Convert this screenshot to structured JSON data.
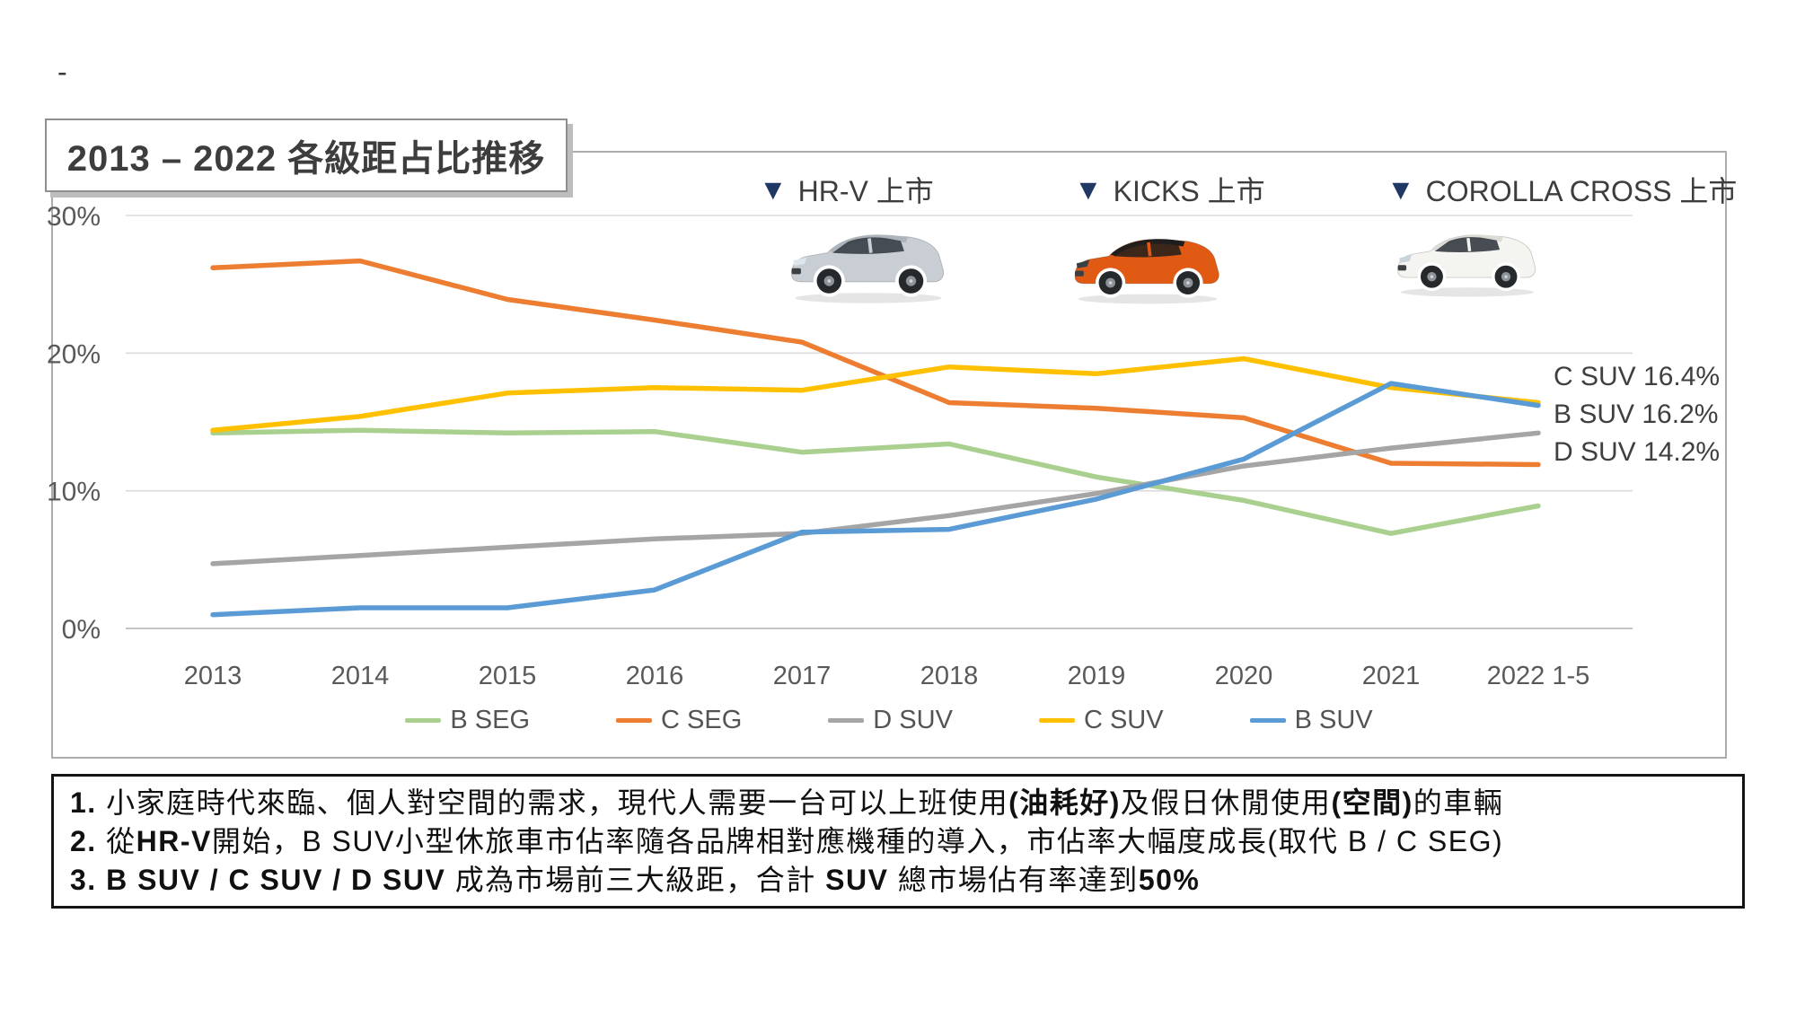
{
  "decorations": {
    "dash": "-"
  },
  "header": {
    "title": "2013 – 2022 各級距占比推移"
  },
  "annotations": [
    {
      "marker": "▼",
      "label": "HR-V 上市",
      "car": {
        "name": "honda-hrv",
        "body": "#C9CED4",
        "roof": "#AEB4BB",
        "glass": "#333A41",
        "light": "#DDE5EC"
      }
    },
    {
      "marker": "▼",
      "label": "KICKS 上市",
      "car": {
        "name": "nissan-kicks",
        "body": "#E05A14",
        "roof": "#1E1E1E",
        "glass": "#26201C",
        "light": "#3A3F44"
      }
    },
    {
      "marker": "▼",
      "label": "COROLLA CROSS 上市",
      "car": {
        "name": "toyota-corolla-cross",
        "body": "#F4F4F1",
        "roof": "#DCDCD6",
        "glass": "#2F353B",
        "light": "#C9D3DB"
      }
    }
  ],
  "chart_data": {
    "type": "line",
    "title": "2013 – 2022 各級距占比推移",
    "categories": [
      "2013",
      "2014",
      "2015",
      "2016",
      "2017",
      "2018",
      "2019",
      "2020",
      "2021",
      "2022 1-5"
    ],
    "series": [
      {
        "name": "B SEG",
        "color": "#A9D08E",
        "values": [
          14.2,
          14.4,
          14.2,
          14.3,
          12.8,
          13.4,
          11.0,
          9.3,
          6.9,
          8.9
        ]
      },
      {
        "name": "C SEG",
        "color": "#ED7D31",
        "values": [
          26.2,
          26.7,
          23.9,
          22.4,
          20.8,
          16.4,
          16.0,
          15.3,
          12.0,
          11.9
        ]
      },
      {
        "name": "D SUV",
        "color": "#A5A5A5",
        "values": [
          4.7,
          5.3,
          5.9,
          6.5,
          6.9,
          8.2,
          9.8,
          11.8,
          13.1,
          14.2
        ]
      },
      {
        "name": "C SUV",
        "color": "#FFC000",
        "values": [
          14.4,
          15.4,
          17.1,
          17.5,
          17.3,
          19.0,
          18.5,
          19.6,
          17.5,
          16.4
        ]
      },
      {
        "name": "B SUV",
        "color": "#5B9BD5",
        "values": [
          1.0,
          1.5,
          1.5,
          2.8,
          7.0,
          7.2,
          9.4,
          12.3,
          17.8,
          16.2
        ]
      }
    ],
    "y_ticks": [
      {
        "value": 30,
        "label": "30%"
      },
      {
        "value": 20,
        "label": "20%"
      },
      {
        "value": 10,
        "label": "10%"
      },
      {
        "value": 0,
        "label": "0%"
      }
    ],
    "ylim": [
      0,
      30
    ],
    "grid": true,
    "legend_position": "bottom",
    "end_labels": [
      "C SUV 16.4%",
      "B SUV 16.2%",
      "D SUV 14.2%"
    ]
  },
  "notes": [
    {
      "segments": [
        {
          "text": "1. ",
          "bold": true
        },
        {
          "text": "小家庭時代來臨、個人對空間的需求，現代人需要一台可以上班使用",
          "bold": false
        },
        {
          "text": "(油耗好)",
          "bold": true
        },
        {
          "text": "及假日休閒使用",
          "bold": false
        },
        {
          "text": "(空間)",
          "bold": true
        },
        {
          "text": "的車輛",
          "bold": false
        }
      ]
    },
    {
      "segments": [
        {
          "text": "2. ",
          "bold": true
        },
        {
          "text": "從",
          "bold": false
        },
        {
          "text": "HR-V",
          "bold": true
        },
        {
          "text": "開始，B SUV小型休旅車市佔率隨各品牌相對應機種的導入，市佔率大幅度成長",
          "bold": false
        },
        {
          "text": "(取代 B / C SEG)",
          "bold": false
        }
      ]
    },
    {
      "segments": [
        {
          "text": "3. B SUV / C SUV / D SUV ",
          "bold": true
        },
        {
          "text": "成為市場前三大級距，合計 ",
          "bold": false
        },
        {
          "text": "SUV",
          "bold": true
        },
        {
          "text": " 總市場佔有率達到",
          "bold": false
        },
        {
          "text": "50%",
          "bold": true
        }
      ]
    }
  ],
  "colors": {
    "triangle": "#1F3864",
    "grid_line": "#DBDBDB",
    "axis_line": "#C4C4C4",
    "tick_text": "#595959",
    "panel_border": "#ACACAC",
    "notes_border": "#141414"
  }
}
